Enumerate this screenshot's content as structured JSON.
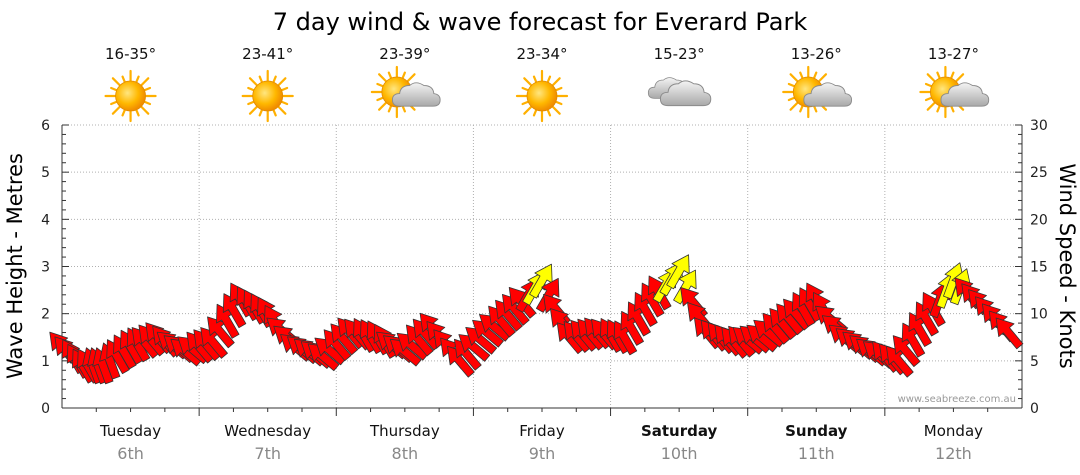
{
  "chart_data": {
    "type": "line",
    "title": "7 day wind & wave forecast for Everard Park",
    "left_axis": {
      "label": "Wave Height - Metres",
      "range": [
        0,
        6
      ],
      "ticks": [
        "0",
        "1",
        "2",
        "3",
        "4",
        "5",
        "6"
      ]
    },
    "right_axis": {
      "label": "Wind Speed - Knots",
      "range": [
        0,
        30
      ],
      "ticks": [
        "0",
        "5",
        "10",
        "15",
        "20",
        "25",
        "30"
      ]
    },
    "grid": true,
    "watermark": "www.seabreeze.com.au",
    "days": [
      {
        "name": "Tuesday",
        "date": "6th",
        "temp": "16-35°",
        "icon": "sun-icon",
        "bold": false
      },
      {
        "name": "Wednesday",
        "date": "7th",
        "temp": "23-41°",
        "icon": "sun-icon",
        "bold": false
      },
      {
        "name": "Thursday",
        "date": "8th",
        "temp": "23-39°",
        "icon": "sun-cloud-icon",
        "bold": false
      },
      {
        "name": "Friday",
        "date": "9th",
        "temp": "23-34°",
        "icon": "sun-icon",
        "bold": false
      },
      {
        "name": "Saturday",
        "date": "10th",
        "temp": "15-23°",
        "icon": "cloud-icon",
        "bold": true
      },
      {
        "name": "Sunday",
        "date": "11th",
        "temp": "13-26°",
        "icon": "sun-cloud-icon",
        "bold": true
      },
      {
        "name": "Monday",
        "date": "12th",
        "temp": "13-27°",
        "icon": "sun-cloud-icon",
        "bold": false
      }
    ],
    "series": [
      {
        "name": "Wind Speed",
        "unit": "knots",
        "colors": {
          "normal": "#ff0000",
          "strong": "#ffff00"
        },
        "strong_threshold_knots": 12.5,
        "x_day": [
          0.0,
          0.15,
          0.3,
          0.5,
          0.7,
          0.9,
          1.1,
          1.3,
          1.5,
          1.7,
          1.9,
          2.1,
          2.3,
          2.5,
          2.7,
          2.9,
          3.1,
          3.3,
          3.5,
          3.7,
          3.9,
          4.1,
          4.3,
          4.5,
          4.7,
          4.9,
          5.1,
          5.3,
          5.5,
          5.7,
          5.9,
          6.1,
          6.3,
          6.5,
          6.7,
          6.9
        ],
        "values": [
          6.5,
          4.5,
          4.5,
          6.5,
          7.5,
          6.0,
          7.0,
          11.5,
          10.0,
          6.5,
          5.5,
          8.0,
          7.5,
          6.0,
          8.5,
          5.0,
          8.0,
          10.5,
          13.5,
          7.5,
          8.0,
          7.5,
          11.5,
          14.5,
          8.0,
          7.0,
          7.5,
          9.5,
          11.5,
          7.5,
          6.0,
          5.0,
          9.5,
          13.5,
          11.0,
          8.0
        ],
        "direction_deg": [
          320,
          330,
          340,
          330,
          320,
          310,
          320,
          330,
          330,
          310,
          310,
          320,
          330,
          310,
          320,
          320,
          310,
          320,
          30,
          320,
          320,
          330,
          330,
          30,
          320,
          320,
          310,
          320,
          330,
          310,
          310,
          320,
          330,
          20,
          320,
          320
        ]
      }
    ]
  }
}
